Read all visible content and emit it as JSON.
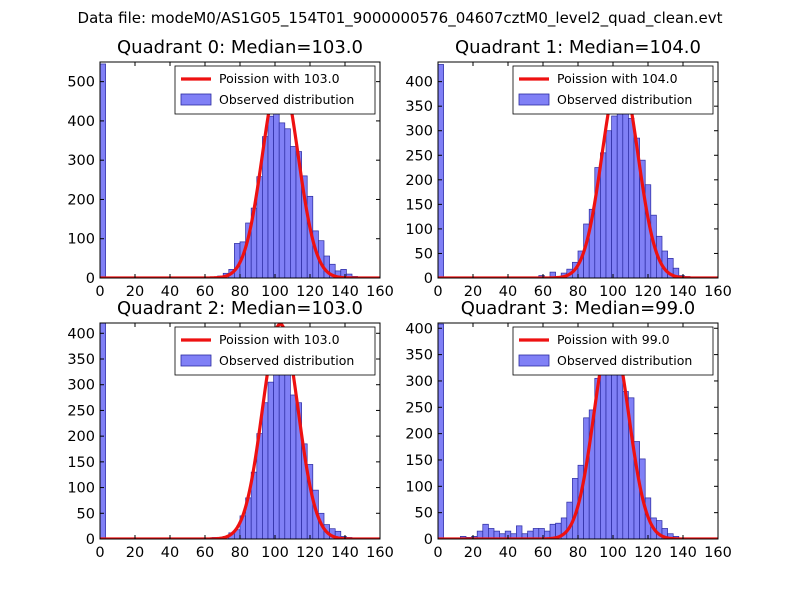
{
  "suptitle": "Data file: modeM0/AS1G05_154T01_9000000576_04607cztM0_level2_quad_clean.evt",
  "chart_data": [
    {
      "type": "bar",
      "title": "Quadrant 0: Median=103.0",
      "median": 103.0,
      "xlim": [
        0,
        160
      ],
      "ylim": [
        0,
        550
      ],
      "xticks": [
        0,
        20,
        40,
        60,
        80,
        100,
        120,
        140,
        160
      ],
      "yticks": [
        0,
        100,
        200,
        300,
        400,
        500
      ],
      "bin_width": 3.2,
      "bins": [
        [
          0,
          545
        ],
        [
          64,
          3
        ],
        [
          67.2,
          5
        ],
        [
          70.4,
          12
        ],
        [
          73.6,
          22
        ],
        [
          76.8,
          88
        ],
        [
          80,
          92
        ],
        [
          83.2,
          140
        ],
        [
          86.4,
          178
        ],
        [
          89.6,
          258
        ],
        [
          92.8,
          360
        ],
        [
          96,
          412
        ],
        [
          99.2,
          430
        ],
        [
          102.4,
          395
        ],
        [
          105.6,
          380
        ],
        [
          108.8,
          335
        ],
        [
          112,
          322
        ],
        [
          115.2,
          260
        ],
        [
          118.4,
          208
        ],
        [
          121.6,
          120
        ],
        [
          124.8,
          95
        ],
        [
          128,
          56
        ],
        [
          131.2,
          35
        ],
        [
          134.4,
          18
        ],
        [
          137.6,
          22
        ],
        [
          140.8,
          10
        ],
        [
          144,
          4
        ]
      ],
      "legend": [
        "Poission with 103.0",
        "Observed distribution"
      ],
      "fit_peak": 520
    },
    {
      "type": "bar",
      "title": "Quadrant 1: Median=104.0",
      "median": 104.0,
      "xlim": [
        0,
        160
      ],
      "ylim": [
        0,
        440
      ],
      "xticks": [
        0,
        20,
        40,
        60,
        80,
        100,
        120,
        140,
        160
      ],
      "yticks": [
        0,
        50,
        100,
        150,
        200,
        250,
        300,
        350,
        400
      ],
      "bin_width": 3.2,
      "bins": [
        [
          0,
          435
        ],
        [
          57.6,
          5
        ],
        [
          64,
          12
        ],
        [
          67.2,
          3
        ],
        [
          70.4,
          10
        ],
        [
          73.6,
          18
        ],
        [
          76.8,
          32
        ],
        [
          80,
          55
        ],
        [
          83.2,
          110
        ],
        [
          86.4,
          140
        ],
        [
          89.6,
          225
        ],
        [
          92.8,
          255
        ],
        [
          96,
          300
        ],
        [
          99.2,
          330
        ],
        [
          102.4,
          385
        ],
        [
          105.6,
          375
        ],
        [
          108.8,
          325
        ],
        [
          112,
          285
        ],
        [
          115.2,
          240
        ],
        [
          118.4,
          190
        ],
        [
          121.6,
          128
        ],
        [
          124.8,
          85
        ],
        [
          128,
          55
        ],
        [
          131.2,
          40
        ],
        [
          134.4,
          20
        ],
        [
          137.6,
          5
        ],
        [
          140.8,
          3
        ],
        [
          144,
          2
        ]
      ],
      "legend": [
        "Poission with 104.0",
        "Observed distribution"
      ],
      "fit_peak": 418
    },
    {
      "type": "bar",
      "title": "Quadrant 2: Median=103.0",
      "median": 103.0,
      "xlim": [
        0,
        160
      ],
      "ylim": [
        0,
        420
      ],
      "xticks": [
        0,
        20,
        40,
        60,
        80,
        100,
        120,
        140,
        160
      ],
      "yticks": [
        0,
        50,
        100,
        150,
        200,
        250,
        300,
        350,
        400
      ],
      "bin_width": 3.2,
      "bins": [
        [
          0,
          425
        ],
        [
          64,
          3
        ],
        [
          70.4,
          5
        ],
        [
          73.6,
          12
        ],
        [
          76.8,
          18
        ],
        [
          80,
          45
        ],
        [
          83.2,
          80
        ],
        [
          86.4,
          130
        ],
        [
          89.6,
          205
        ],
        [
          92.8,
          265
        ],
        [
          96,
          305
        ],
        [
          99.2,
          330
        ],
        [
          102.4,
          325
        ],
        [
          105.6,
          320
        ],
        [
          108.8,
          280
        ],
        [
          112,
          265
        ],
        [
          115.2,
          185
        ],
        [
          118.4,
          145
        ],
        [
          121.6,
          95
        ],
        [
          124.8,
          50
        ],
        [
          128,
          28
        ],
        [
          131.2,
          20
        ],
        [
          134.4,
          15
        ],
        [
          137.6,
          5
        ],
        [
          140.8,
          3
        ],
        [
          144,
          2
        ]
      ],
      "legend": [
        "Poission with 103.0",
        "Observed distribution"
      ],
      "fit_peak": 418
    },
    {
      "type": "bar",
      "title": "Quadrant 3: Median=99.0",
      "median": 99.0,
      "xlim": [
        0,
        160
      ],
      "ylim": [
        0,
        410
      ],
      "xticks": [
        0,
        20,
        40,
        60,
        80,
        100,
        120,
        140,
        160
      ],
      "yticks": [
        0,
        50,
        100,
        150,
        200,
        250,
        300,
        350,
        400
      ],
      "bin_width": 3.2,
      "bins": [
        [
          0,
          408
        ],
        [
          12.8,
          5
        ],
        [
          16,
          3
        ],
        [
          19.2,
          5
        ],
        [
          22.4,
          15
        ],
        [
          25.6,
          28
        ],
        [
          28.8,
          20
        ],
        [
          32,
          15
        ],
        [
          35.2,
          10
        ],
        [
          38.4,
          15
        ],
        [
          41.6,
          10
        ],
        [
          44.8,
          25
        ],
        [
          48,
          10
        ],
        [
          51.2,
          15
        ],
        [
          54.4,
          20
        ],
        [
          57.6,
          20
        ],
        [
          60.8,
          15
        ],
        [
          64,
          28
        ],
        [
          67.2,
          30
        ],
        [
          70.4,
          40
        ],
        [
          73.6,
          70
        ],
        [
          76.8,
          115
        ],
        [
          80,
          140
        ],
        [
          83.2,
          230
        ],
        [
          86.4,
          245
        ],
        [
          89.6,
          305
        ],
        [
          92.8,
          365
        ],
        [
          96,
          390
        ],
        [
          99.2,
          360
        ],
        [
          102.4,
          335
        ],
        [
          105.6,
          280
        ],
        [
          108.8,
          268
        ],
        [
          112,
          185
        ],
        [
          115.2,
          152
        ],
        [
          118.4,
          78
        ],
        [
          121.6,
          40
        ],
        [
          124.8,
          35
        ],
        [
          128,
          20
        ],
        [
          131.2,
          10
        ],
        [
          134.4,
          5
        ]
      ],
      "legend": [
        "Poission with 99.0",
        "Observed distribution"
      ],
      "fit_peak": 390
    }
  ],
  "colors": {
    "hist_fill": "#8080f6",
    "hist_edge": "#2a2aa0",
    "fit_line": "#ee1111"
  }
}
